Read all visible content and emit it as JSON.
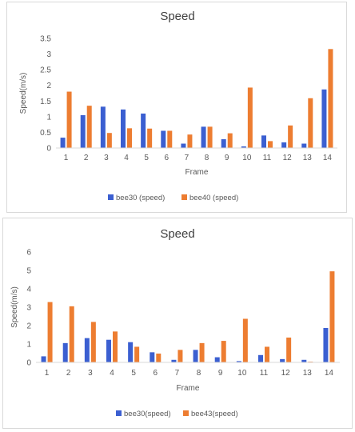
{
  "chart_data": [
    {
      "type": "bar",
      "title": "Speed",
      "xlabel": "Frame",
      "ylabel": "Speed(m/s)",
      "ylim": [
        0,
        3.5
      ],
      "yticks": [
        "0",
        "0.5",
        "1",
        "1.5",
        "2",
        "2.5",
        "3",
        "3.5"
      ],
      "categories": [
        "1",
        "2",
        "3",
        "4",
        "5",
        "6",
        "7",
        "8",
        "9",
        "10",
        "11",
        "12",
        "13",
        "14"
      ],
      "legend_position": "bottom",
      "grid": false,
      "series": [
        {
          "name": "bee30 (speed)",
          "color": "#3b5fd1",
          "values": [
            0.33,
            1.05,
            1.32,
            1.23,
            1.1,
            0.55,
            0.14,
            0.68,
            0.28,
            0.05,
            0.4,
            0.18,
            0.14,
            1.87
          ]
        },
        {
          "name": "bee40 (speed)",
          "color": "#ed7d31",
          "values": [
            1.8,
            1.35,
            0.48,
            0.63,
            0.62,
            0.55,
            0.43,
            0.68,
            0.47,
            1.93,
            0.22,
            0.72,
            1.59,
            3.16
          ]
        }
      ]
    },
    {
      "type": "bar",
      "title": "Speed",
      "xlabel": "Frame",
      "ylabel": "Speed(m/s)",
      "ylim": [
        0,
        6
      ],
      "yticks": [
        "0",
        "1",
        "2",
        "3",
        "4",
        "5",
        "6"
      ],
      "categories": [
        "1",
        "2",
        "3",
        "4",
        "5",
        "6",
        "7",
        "8",
        "9",
        "10",
        "11",
        "12",
        "13",
        "14"
      ],
      "legend_position": "bottom",
      "grid": false,
      "series": [
        {
          "name": "bee30(speed)",
          "color": "#3b5fd1",
          "values": [
            0.33,
            1.05,
            1.32,
            1.23,
            1.1,
            0.55,
            0.14,
            0.68,
            0.28,
            0.07,
            0.4,
            0.18,
            0.14,
            1.87
          ]
        },
        {
          "name": "bee43(speed)",
          "color": "#ed7d31",
          "values": [
            3.28,
            3.05,
            2.2,
            1.68,
            0.85,
            0.48,
            0.68,
            1.05,
            1.17,
            2.37,
            0.85,
            1.35,
            0.04,
            4.95
          ]
        }
      ]
    }
  ]
}
